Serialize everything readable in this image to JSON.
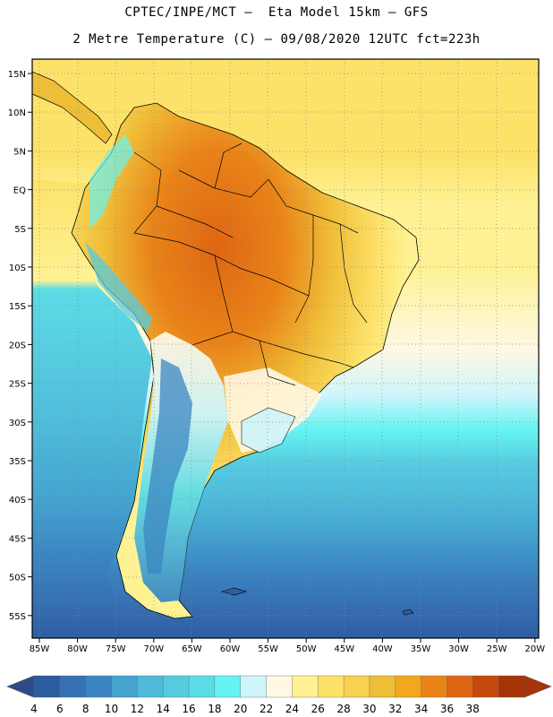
{
  "header": {
    "line1": "CPTEC/INPE/MCT –  Eta Model 15km – GFS",
    "line2": "2 Metre Temperature (C) – 09/08/2020 12UTC fct=223h"
  },
  "axes": {
    "lat_labels": [
      "15N",
      "10N",
      "5N",
      "EQ",
      "5S",
      "10S",
      "15S",
      "20S",
      "25S",
      "30S",
      "35S",
      "40S",
      "45S",
      "50S",
      "55S"
    ],
    "lon_labels": [
      "85W",
      "80W",
      "75W",
      "70W",
      "65W",
      "60W",
      "55W",
      "50W",
      "45W",
      "40W",
      "35W",
      "30W",
      "25W",
      "20W"
    ]
  },
  "colorbar": {
    "labels": [
      "4",
      "6",
      "8",
      "10",
      "12",
      "14",
      "16",
      "18",
      "20",
      "22",
      "24",
      "26",
      "28",
      "30",
      "32",
      "34",
      "36",
      "38"
    ],
    "colors": [
      "#2a5c9e",
      "#3671b3",
      "#3b86c2",
      "#44a3cf",
      "#4fbad9",
      "#56cbe0",
      "#5cdce6",
      "#66f3f3",
      "#cff5fb",
      "#fff8e4",
      "#fef294",
      "#fde26a",
      "#f8d052",
      "#efbe38",
      "#f1a81c",
      "#e98419",
      "#de6612",
      "#c34a0a",
      "#a63408"
    ],
    "under_color": "#2f4a8a",
    "over_color": "#a63408"
  }
}
